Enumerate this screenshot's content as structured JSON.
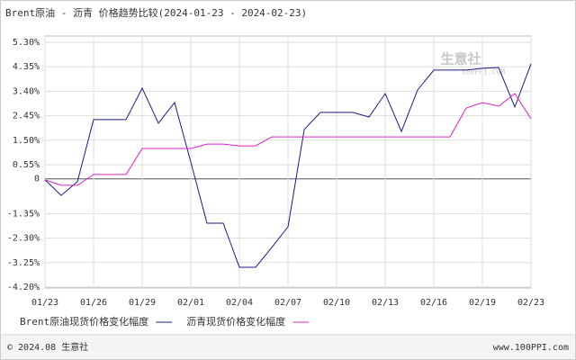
{
  "chart_data": {
    "type": "line",
    "title": "Brent原油 - 沥青 价格趋势比较(2024-01-23 - 2024-02-23)",
    "categories": [
      "01/23",
      null,
      null,
      "01/26",
      null,
      null,
      "01/29",
      null,
      null,
      "02/01",
      null,
      null,
      "02/04",
      null,
      null,
      "02/07",
      null,
      null,
      "02/10",
      null,
      null,
      "02/13",
      null,
      null,
      "02/16",
      null,
      null,
      "02/19",
      null,
      null,
      "02/23"
    ],
    "series": [
      {
        "name": "Brent原油现货价格变化幅度",
        "color": "#1a1a8c",
        "values": [
          -0.04,
          -0.64,
          -0.11,
          2.3,
          2.3,
          2.3,
          3.52,
          2.16,
          2.96,
          0.65,
          -1.72,
          -1.72,
          -3.43,
          -3.43,
          -2.66,
          -1.86,
          1.91,
          2.58,
          2.58,
          2.58,
          2.4,
          3.31,
          1.84,
          3.45,
          4.22,
          4.22,
          4.22,
          4.29,
          4.32,
          2.79,
          4.46
        ]
      },
      {
        "name": "沥青现货价格变化幅度",
        "color": "#e020c8",
        "values": [
          -0.04,
          -0.25,
          -0.25,
          0.17,
          0.17,
          0.17,
          1.18,
          1.18,
          1.18,
          1.18,
          1.35,
          1.35,
          1.28,
          1.28,
          1.63,
          1.63,
          1.63,
          1.63,
          1.63,
          1.63,
          1.63,
          1.63,
          1.63,
          1.63,
          1.63,
          1.63,
          2.75,
          2.96,
          2.82,
          3.31,
          2.33
        ]
      }
    ],
    "ylim": [
      -4.2,
      5.3
    ],
    "yticks": [
      {
        "value": 5.3,
        "label": "5.30%"
      },
      {
        "value": 4.35,
        "label": "4.35%"
      },
      {
        "value": 3.4,
        "label": "3.40%"
      },
      {
        "value": 2.45,
        "label": "2.45%"
      },
      {
        "value": 1.5,
        "label": "1.50%"
      },
      {
        "value": 0.55,
        "label": "0.55%"
      },
      0,
      {
        "value": -1.35,
        "label": "-1.35%"
      },
      {
        "value": -2.3,
        "label": "-2.30%"
      },
      {
        "value": -3.25,
        "label": "-3.25%"
      },
      {
        "value": -4.2,
        "label": "-4.20%"
      }
    ],
    "grid": true,
    "watermark": "生意社",
    "watermark_sub": "100PPI.COM",
    "footer_left": "© 2024.08 生意社",
    "footer_right": "www.100PPI.com"
  }
}
